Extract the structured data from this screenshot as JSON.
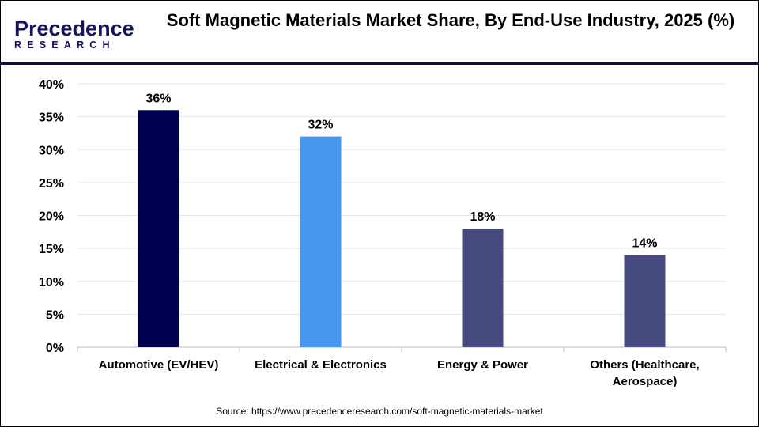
{
  "logo": {
    "line1": "Precedence",
    "line2": "RESEARCH"
  },
  "chart_data": {
    "type": "bar",
    "title": "Soft Magnetic Materials Market Share, By End-Use Industry, 2025 (%)",
    "categories": [
      "Automotive (EV/HEV)",
      "Electrical & Electronics",
      "Energy & Power",
      "Others (Healthcare, Aerospace)"
    ],
    "category_lines": [
      [
        "Automotive (EV/HEV)"
      ],
      [
        "Electrical & Electronics"
      ],
      [
        "Energy & Power"
      ],
      [
        "Others (Healthcare,",
        "Aerospace)"
      ]
    ],
    "values": [
      36,
      32,
      18,
      14
    ],
    "data_labels": [
      "36%",
      "32%",
      "18%",
      "14%"
    ],
    "colors": [
      "#000050",
      "#4796F0",
      "#474A7E",
      "#474A7E"
    ],
    "ylim": [
      0,
      40
    ],
    "yticks": [
      0,
      5,
      10,
      15,
      20,
      25,
      30,
      35,
      40
    ],
    "ytick_labels": [
      "0%",
      "5%",
      "10%",
      "15%",
      "20%",
      "25%",
      "30%",
      "35%",
      "40%"
    ],
    "grid": true,
    "xlabel": "",
    "ylabel": ""
  },
  "source": "Source: https://www.precedenceresearch.com/soft-magnetic-materials-market"
}
